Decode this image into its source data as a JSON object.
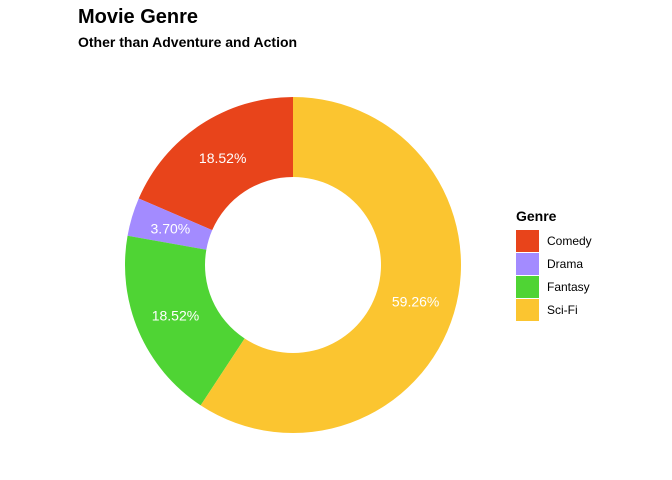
{
  "title": "Movie Genre",
  "subtitle": "Other than Adventure and Action",
  "chart_data": {
    "type": "pie",
    "style": "donut",
    "title": "Movie Genre",
    "subtitle": "Other than Adventure and Action",
    "legend_title": "Genre",
    "legend_position": "right",
    "categories": [
      "Comedy",
      "Drama",
      "Fantasy",
      "Sci-Fi"
    ],
    "values": [
      18.52,
      3.7,
      18.52,
      59.26
    ],
    "labels": [
      "18.52%",
      "3.70%",
      "18.52%",
      "59.26%"
    ],
    "colors": [
      "#E8441B",
      "#A38BFF",
      "#4FD434",
      "#FBC530"
    ]
  }
}
